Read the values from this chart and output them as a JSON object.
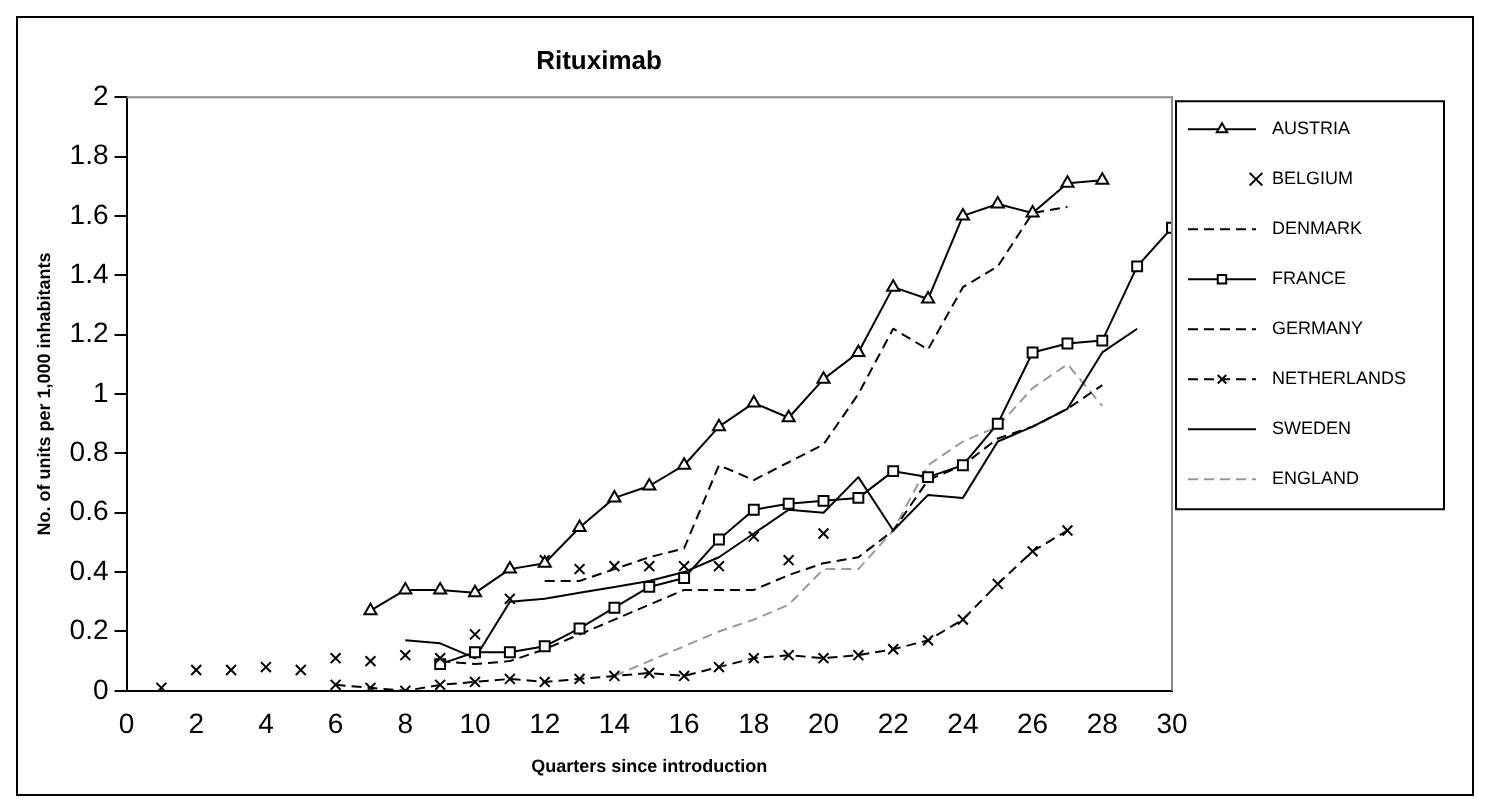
{
  "chart_data": {
    "type": "line",
    "title": "Rituximab",
    "xlabel": "Quarters since introduction",
    "ylabel": "No. of units per 1,000 inhabitants",
    "xlim": [
      0,
      30
    ],
    "xticks": [
      0,
      2,
      4,
      6,
      8,
      10,
      12,
      14,
      16,
      18,
      20,
      22,
      24,
      26,
      28,
      30
    ],
    "ylim": [
      0,
      2
    ],
    "yticks": [
      0,
      0.2,
      0.4,
      0.6,
      0.8,
      1,
      1.2,
      1.4,
      1.6,
      1.8,
      2
    ],
    "grid": false,
    "legend": "right",
    "series": [
      {
        "name": "AUSTRIA",
        "type": "line",
        "marker": "triangle",
        "line_style": "solid",
        "color": "#000000",
        "x": [
          7,
          8,
          9,
          10,
          11,
          12,
          13,
          14,
          15,
          16,
          17,
          18,
          19,
          20,
          21,
          22,
          23,
          24,
          25,
          26,
          27,
          28
        ],
        "values": [
          0.27,
          0.34,
          0.34,
          0.33,
          0.41,
          0.43,
          0.55,
          0.65,
          0.69,
          0.76,
          0.89,
          0.97,
          0.92,
          1.05,
          1.14,
          1.36,
          1.32,
          1.6,
          1.64,
          1.61,
          1.71,
          1.72
        ]
      },
      {
        "name": "BELGIUM",
        "type": "scatter",
        "marker": "cross",
        "color": "#000000",
        "x": [
          1,
          2,
          3,
          4,
          5,
          6,
          7,
          8,
          9,
          10,
          11,
          12,
          13,
          14,
          15,
          16,
          17,
          18,
          19,
          20
        ],
        "values": [
          0.01,
          0.07,
          0.07,
          0.08,
          0.07,
          0.11,
          0.1,
          0.12,
          0.11,
          0.19,
          0.31,
          0.44,
          0.41,
          0.42,
          0.42,
          0.42,
          0.42,
          0.52,
          0.44,
          0.53
        ]
      },
      {
        "name": "DENMARK",
        "type": "line",
        "marker": "none",
        "line_style": "dashed",
        "color": "#000000",
        "x": [
          12,
          13,
          14,
          15,
          16,
          17,
          18,
          19,
          20,
          21,
          22,
          23,
          24,
          25,
          26,
          27
        ],
        "values": [
          0.37,
          0.37,
          0.41,
          0.45,
          0.48,
          0.76,
          0.71,
          0.77,
          0.83,
          1.0,
          1.22,
          1.15,
          1.36,
          1.43,
          1.61,
          1.63
        ]
      },
      {
        "name": "FRANCE",
        "type": "line",
        "marker": "square",
        "line_style": "solid",
        "color": "#000000",
        "x": [
          9,
          10,
          11,
          12,
          13,
          14,
          15,
          16,
          17,
          18,
          19,
          20,
          21,
          22,
          23,
          24,
          25,
          26,
          27,
          28,
          29,
          30
        ],
        "values": [
          0.09,
          0.13,
          0.13,
          0.15,
          0.21,
          0.28,
          0.35,
          0.38,
          0.51,
          0.61,
          0.63,
          0.64,
          0.65,
          0.74,
          0.72,
          0.76,
          0.9,
          1.14,
          1.17,
          1.18,
          1.43,
          1.56
        ]
      },
      {
        "name": "GERMANY",
        "type": "line",
        "marker": "none",
        "line_style": "dashed",
        "color": "#000000",
        "x": [
          9,
          10,
          11,
          12,
          13,
          14,
          15,
          16,
          17,
          18,
          19,
          20,
          21,
          22,
          23,
          24,
          25,
          26,
          27,
          28
        ],
        "values": [
          0.1,
          0.09,
          0.1,
          0.14,
          0.19,
          0.24,
          0.29,
          0.34,
          0.34,
          0.34,
          0.39,
          0.43,
          0.45,
          0.54,
          0.71,
          0.76,
          0.85,
          0.89,
          0.95,
          1.03
        ]
      },
      {
        "name": "NETHERLANDS",
        "type": "line",
        "marker": "cross",
        "line_style": "dashed",
        "color": "#000000",
        "x": [
          6,
          7,
          8,
          9,
          10,
          11,
          12,
          13,
          14,
          15,
          16,
          17,
          18,
          19,
          20,
          21,
          22,
          23,
          24,
          25,
          26,
          27
        ],
        "values": [
          0.02,
          0.01,
          0.0,
          0.02,
          0.03,
          0.04,
          0.03,
          0.04,
          0.05,
          0.06,
          0.05,
          0.08,
          0.11,
          0.12,
          0.11,
          0.12,
          0.14,
          0.17,
          0.24,
          0.36,
          0.47,
          0.54
        ]
      },
      {
        "name": "SWEDEN",
        "type": "line",
        "marker": "none",
        "line_style": "solid",
        "color": "#000000",
        "x": [
          8,
          9,
          10,
          11,
          12,
          13,
          14,
          15,
          16,
          17,
          18,
          19,
          20,
          21,
          22,
          23,
          24,
          25,
          26,
          27,
          28,
          29
        ],
        "values": [
          0.17,
          0.16,
          0.11,
          0.3,
          0.31,
          0.33,
          0.35,
          0.37,
          0.4,
          0.45,
          0.53,
          0.61,
          0.6,
          0.72,
          0.54,
          0.66,
          0.65,
          0.84,
          0.89,
          0.95,
          1.14,
          1.22
        ]
      },
      {
        "name": "ENGLAND",
        "type": "line",
        "marker": "none",
        "line_style": "dashed",
        "color": "#999999",
        "x": [
          14,
          15,
          16,
          17,
          18,
          19,
          20,
          21,
          22,
          23,
          24,
          25,
          26,
          27,
          28
        ],
        "values": [
          0.05,
          0.1,
          0.15,
          0.2,
          0.24,
          0.29,
          0.41,
          0.41,
          0.54,
          0.76,
          0.84,
          0.89,
          1.02,
          1.1,
          0.96
        ]
      }
    ]
  }
}
